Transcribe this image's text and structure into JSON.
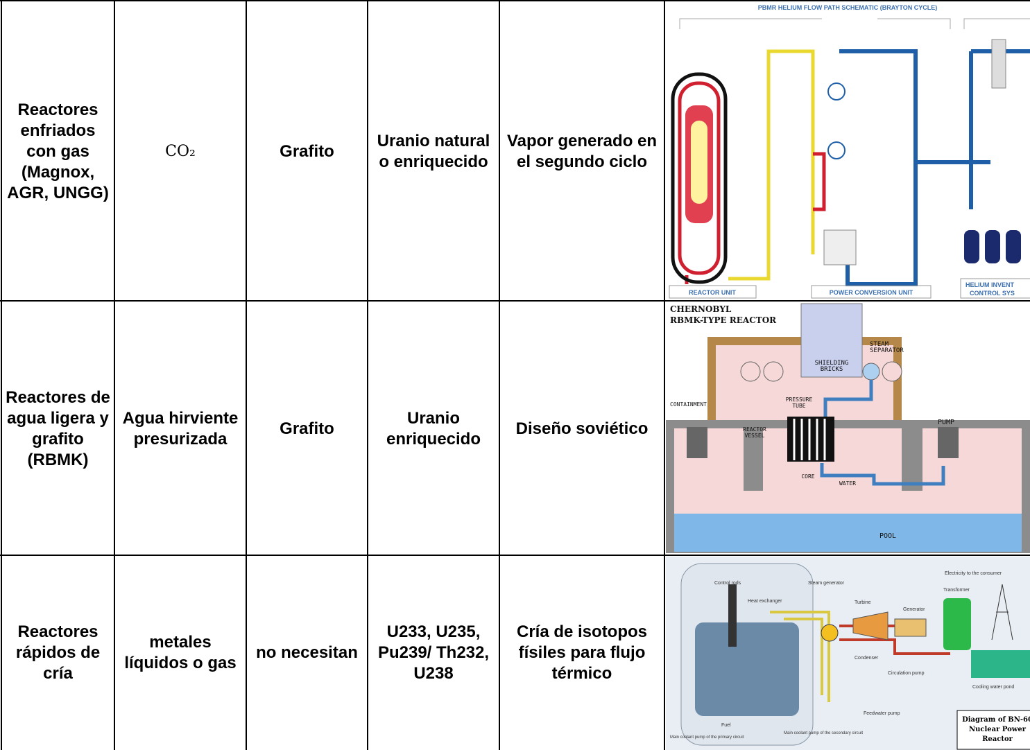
{
  "table": {
    "rows": [
      [
        "Reactores enfriados con gas (Magnox, AGR, UNGG)",
        "CO₂",
        "Grafito",
        "Uranio natural o enriquecido",
        "Vapor generado en el segundo ciclo"
      ],
      [
        "Reactores de agua ligera y grafito (RBMK)",
        "Agua hirviente presurizada",
        "Grafito",
        "Uranio enriquecido",
        "Diseño soviético"
      ],
      [
        "Reactores rápidos de cría",
        "metales líquidos o gas",
        "no necesitan",
        "U233, U235, Pu239/ Th232, U238",
        "Cría de isotopos físiles para flujo térmico"
      ]
    ]
  },
  "images": [
    {
      "labels": [
        "PBMR HELIUM FLOW PATH SCHEMATIC (BRAYTON CYCLE)",
        "REACTOR UNIT",
        "POWER CONVERSION UNIT",
        "HELIUM INVENT",
        "CONTROL SYS"
      ]
    },
    {
      "labels": [
        "CHERNOBYL",
        "RBMK-TYPE REACTOR",
        "SHIELDING",
        "BRICKS",
        "STEAM",
        "SEPARATOR",
        "CONTAINMENT",
        "PRESSURE",
        "TUBE",
        "REACTOR",
        "VESSEL",
        "PUMP",
        "CORE",
        "WATER",
        "POOL"
      ]
    },
    {
      "labels": [
        "Control rods",
        "Heat exchanger",
        "Steam generator",
        "Turbine",
        "Generator",
        "Transformer",
        "Electricity to the consumer",
        "Condenser",
        "Circulation pump",
        "Cooling water pond",
        "Fuel",
        "Feedwater pump",
        "Main coolant pump of the secondary circuit",
        "Main coolant pump of the primary circuit",
        "Diagram of BN-60",
        "Nuclear Power",
        "Reactor"
      ]
    }
  ]
}
